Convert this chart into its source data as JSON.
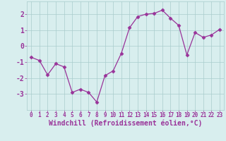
{
  "x": [
    0,
    1,
    2,
    3,
    4,
    5,
    6,
    7,
    8,
    9,
    10,
    11,
    12,
    13,
    14,
    15,
    16,
    17,
    18,
    19,
    20,
    21,
    22,
    23
  ],
  "y": [
    -0.7,
    -0.9,
    -1.8,
    -1.1,
    -1.3,
    -2.9,
    -2.7,
    -2.9,
    -3.5,
    -1.85,
    -1.55,
    -0.45,
    1.15,
    1.85,
    2.0,
    2.05,
    2.25,
    1.75,
    1.3,
    -0.55,
    0.85,
    0.55,
    0.7,
    1.05
  ],
  "line_color": "#993399",
  "marker": "D",
  "marker_size": 2.5,
  "bg_color": "#d8eeee",
  "grid_color": "#aacccc",
  "xlabel": "Windchill (Refroidissement éolien,°C)",
  "xlabel_color": "#993399",
  "xlabel_fontsize": 7,
  "tick_label_color": "#993399",
  "ytick_fontsize": 7,
  "xtick_fontsize": 5.5,
  "ylim": [
    -4,
    2.8
  ],
  "yticks": [
    -3,
    -2,
    -1,
    0,
    1,
    2
  ],
  "xlim": [
    -0.5,
    23.5
  ],
  "xticks": [
    0,
    1,
    2,
    3,
    4,
    5,
    6,
    7,
    8,
    9,
    10,
    11,
    12,
    13,
    14,
    15,
    16,
    17,
    18,
    19,
    20,
    21,
    22,
    23
  ]
}
